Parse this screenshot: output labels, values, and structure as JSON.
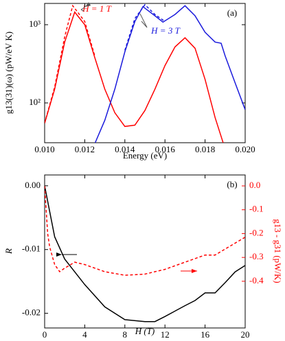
{
  "chart_data": [
    {
      "type": "line",
      "panel_label": "(a)",
      "x_label": "Energy (eV)",
      "y_label": "g13(31)(ω) (pW/eV K)",
      "xlim": [
        0.01,
        0.02
      ],
      "xticks": [
        {
          "value": 0.01,
          "label": "0.010"
        },
        {
          "value": 0.012,
          "label": "0.012"
        },
        {
          "value": 0.014,
          "label": "0.014"
        },
        {
          "value": 0.016,
          "label": "0.016"
        },
        {
          "value": 0.018,
          "label": "0.018"
        },
        {
          "value": 0.02,
          "label": "0.020"
        }
      ],
      "ylim": [
        31,
        1870
      ],
      "log_y": true,
      "yticks": [
        {
          "value": 100,
          "label": "10²"
        },
        {
          "value": 1000,
          "label": "10³"
        }
      ],
      "annotations": [
        "H = 1 T",
        "H = 3 T"
      ],
      "series": [
        {
          "color": "#ff0000",
          "line_style": "solid",
          "x": [
            0.01,
            0.0105,
            0.011,
            0.0115,
            0.012,
            0.0125,
            0.013,
            0.0135,
            0.014,
            0.0145,
            0.015,
            0.0155,
            0.016,
            0.0165,
            0.017,
            0.0175,
            0.018,
            0.0185,
            0.0189
          ],
          "values": [
            55,
            150,
            600,
            1450,
            1000,
            380,
            150,
            75,
            50,
            52,
            80,
            150,
            300,
            520,
            680,
            500,
            200,
            65,
            31
          ]
        },
        {
          "color": "#ff0000",
          "line_style": "dashed",
          "x": [
            0.01,
            0.0105,
            0.011,
            0.0114,
            0.012,
            0.0125
          ],
          "values": [
            55,
            160,
            700,
            1750,
            1100,
            400
          ]
        },
        {
          "color": "#1a1adc",
          "line_style": "solid",
          "x": [
            0.01252,
            0.013,
            0.0135,
            0.014,
            0.0145,
            0.0149,
            0.0155,
            0.0159,
            0.0165,
            0.017,
            0.0175,
            0.018,
            0.0185,
            0.0188,
            0.019,
            0.0195,
            0.02
          ],
          "values": [
            31,
            60,
            150,
            450,
            1100,
            1700,
            1300,
            1080,
            1350,
            1750,
            1300,
            800,
            600,
            580,
            400,
            180,
            82
          ]
        },
        {
          "color": "#1a1adc",
          "line_style": "dashed",
          "x": [
            0.014,
            0.0145,
            0.015,
            0.0155,
            0.016
          ],
          "values": [
            470,
            1200,
            1800,
            1350,
            1100
          ]
        }
      ]
    },
    {
      "type": "line",
      "panel_label": "(b)",
      "x_label": "H (T)",
      "y_label": "R",
      "y2_label": "g13 - g31 (pW/K)",
      "xlim": [
        0,
        20
      ],
      "xticks": [
        0,
        4,
        8,
        12,
        16,
        20
      ],
      "ylim": [
        -0.0223,
        0.0017
      ],
      "yticks": [
        {
          "value": 0,
          "label": "0.00"
        },
        {
          "value": -0.01,
          "label": "-0.01"
        },
        {
          "value": -0.02,
          "label": "-0.02"
        }
      ],
      "y2lim": [
        -0.596,
        0.046
      ],
      "y2ticks": [
        {
          "value": 0,
          "label": "0.0"
        },
        -0.1,
        -0.2,
        -0.3,
        -0.4
      ],
      "y2_color": "#ff0000",
      "series": [
        {
          "color": "#000000",
          "line_style": "solid",
          "x": [
            0,
            0.5,
            1,
            2,
            3,
            4,
            6,
            8,
            10,
            11,
            12,
            14,
            15,
            16,
            17,
            18,
            19,
            20
          ],
          "values": [
            0,
            -0.004,
            -0.008,
            -0.0115,
            -0.0135,
            -0.0155,
            -0.019,
            -0.021,
            -0.0213,
            -0.0213,
            -0.0205,
            -0.0188,
            -0.018,
            -0.0168,
            -0.0168,
            -0.0152,
            -0.0135,
            -0.0125
          ]
        },
        {
          "color": "#ff0000",
          "line_style": "dashed",
          "axis": "y2",
          "x": [
            0,
            0.3,
            0.5,
            1,
            1.5,
            2,
            3,
            4,
            6,
            8,
            10,
            11,
            12,
            14,
            16,
            17,
            18,
            20
          ],
          "values": [
            0,
            -0.2,
            -0.256,
            -0.33,
            -0.36,
            -0.345,
            -0.32,
            -0.33,
            -0.36,
            -0.375,
            -0.37,
            -0.36,
            -0.35,
            -0.32,
            -0.29,
            -0.29,
            -0.265,
            -0.215
          ]
        }
      ]
    }
  ]
}
